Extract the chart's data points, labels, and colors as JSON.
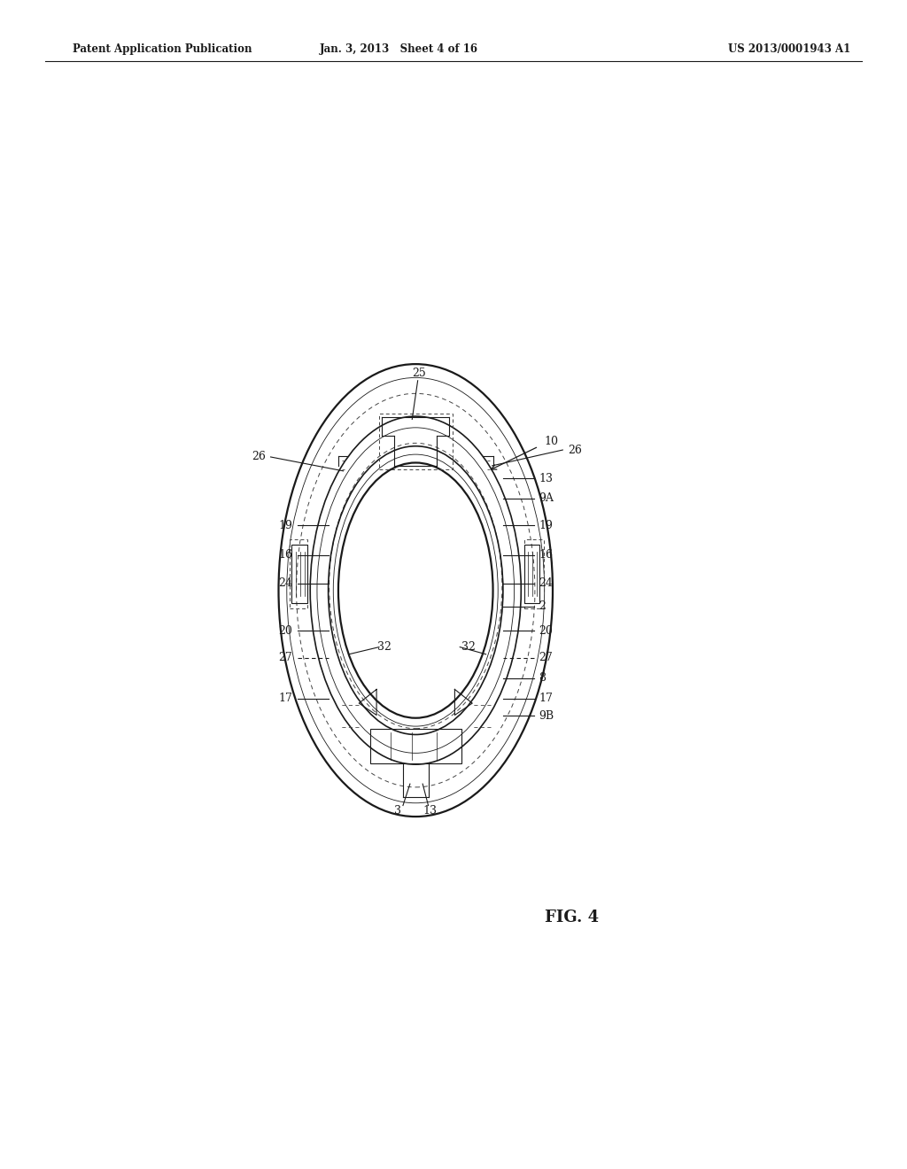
{
  "background_color": "#ffffff",
  "header_left": "Patent Application Publication",
  "header_center": "Jan. 3, 2013   Sheet 4 of 16",
  "header_right": "US 2013/0001943 A1",
  "figure_label": "FIG. 4"
}
